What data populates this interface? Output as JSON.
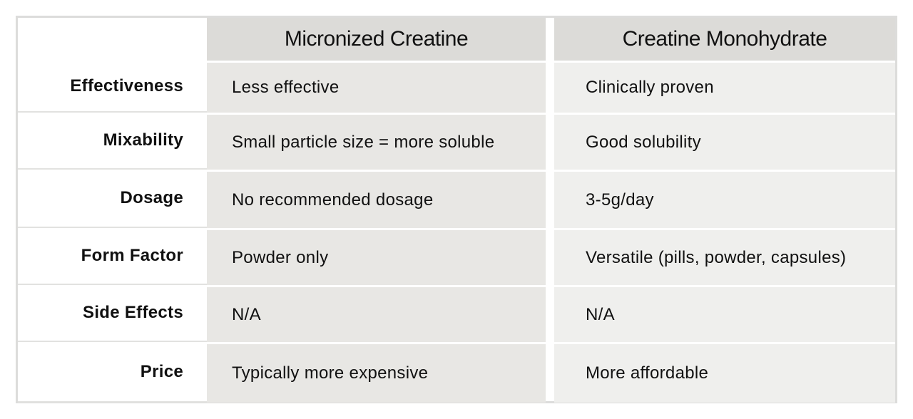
{
  "table": {
    "headers": [
      "Micronized Creatine",
      "Creatine Monohydrate"
    ],
    "rows": [
      [
        "Effectiveness",
        "Less effective",
        "Clinically proven"
      ],
      [
        "Mixability",
        "Small particle size = more soluble",
        "Good solubility"
      ],
      [
        "Dosage",
        "No recommended dosage",
        "3-5g/day"
      ],
      [
        "Form Factor",
        "Powder only",
        "Versatile (pills, powder, capsules)"
      ],
      [
        "Side Effects",
        "N/A",
        "N/A"
      ],
      [
        "Price",
        "Typically more expensive",
        "More affordable"
      ]
    ]
  }
}
